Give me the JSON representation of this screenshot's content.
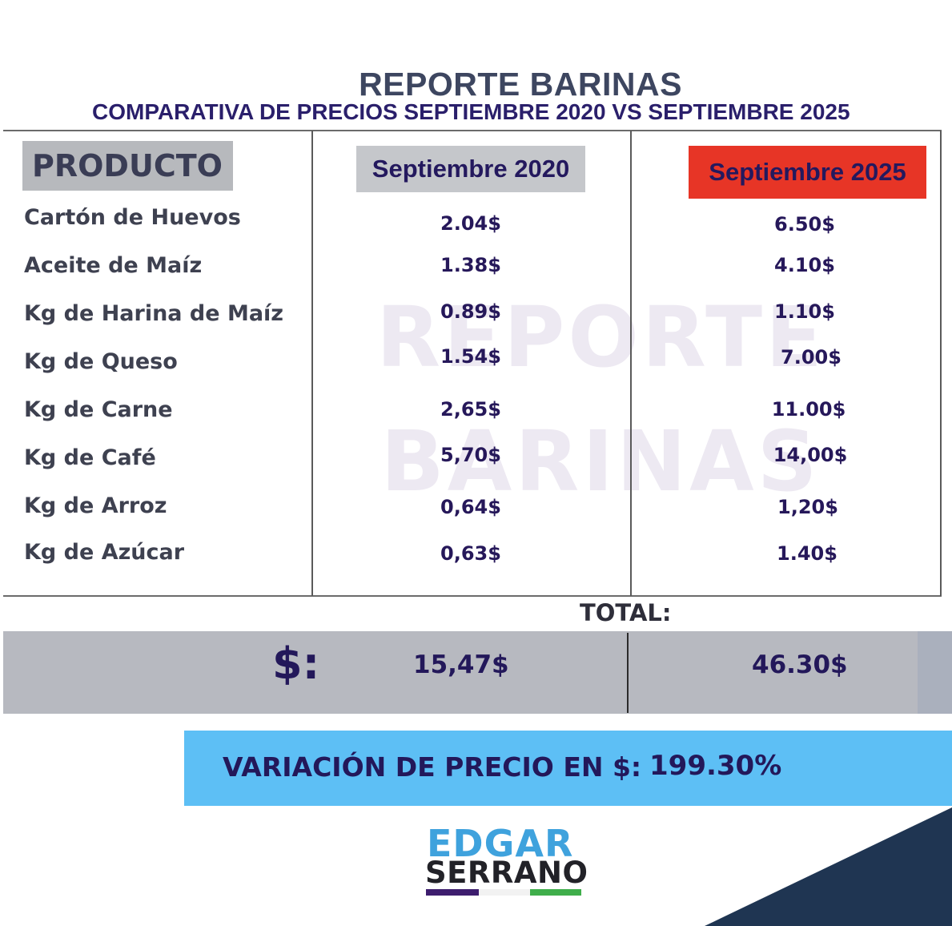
{
  "header": {
    "title": "REPORTE BARINAS",
    "subtitle": "COMPARATIVA DE PRECIOS SEPTIEMBRE 2020 VS SEPTIEMBRE 2025"
  },
  "table": {
    "columns": [
      "PRODUCTO",
      "Septiembre 2020",
      "Septiembre 2025"
    ],
    "rows": [
      {
        "product": "Cartón de Huevos",
        "sep2020": "2.04$",
        "sep2025": "6.50$"
      },
      {
        "product": "Aceite de Maíz",
        "sep2020": "1.38$",
        "sep2025": "4.10$"
      },
      {
        "product": "Kg de Harina de Maíz",
        "sep2020": "0.89$",
        "sep2025": "1.10$"
      },
      {
        "product": "Kg de Queso",
        "sep2020": "1.54$",
        "sep2025": "7.00$"
      },
      {
        "product": "Kg de Carne",
        "sep2020": "2,65$",
        "sep2025": "11.00$"
      },
      {
        "product": "Kg de Café",
        "sep2020": "5,70$",
        "sep2025": "14,00$"
      },
      {
        "product": "Kg de Arroz",
        "sep2020": "0,64$",
        "sep2025": "1,20$"
      },
      {
        "product": "Kg de Azúcar",
        "sep2020": "0,63$",
        "sep2025": "1.40$"
      }
    ]
  },
  "watermark": {
    "line1": "REPORTE",
    "line2": "BARINAS"
  },
  "totals": {
    "label": "TOTAL:",
    "currency_symbol": "$:",
    "sep2020": "15,47$",
    "sep2025": "46.30$"
  },
  "variation": {
    "label": "VARIACIÓN DE PRECIO EN $:",
    "value": "199.30%"
  },
  "logo": {
    "line1": "EDGAR",
    "line2": "SERRANO"
  },
  "colors": {
    "header_2025_bg": "#e73526",
    "variation_bg": "#5dbff5",
    "totals_bg": "#b7b9c0",
    "navy_text": "#23185a",
    "corner_navy": "#1f3552"
  }
}
